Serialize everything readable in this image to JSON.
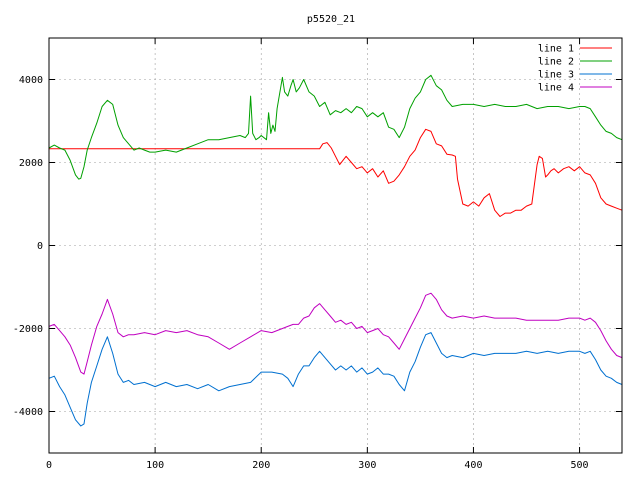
{
  "chart_data": {
    "type": "line",
    "title": "p5520_21",
    "xlabel": "",
    "ylabel": "",
    "xlim": [
      0,
      540
    ],
    "ylim": [
      -5000,
      5000
    ],
    "xticks": [
      0,
      100,
      200,
      300,
      400,
      500
    ],
    "yticks": [
      -4000,
      -2000,
      0,
      2000,
      4000
    ],
    "grid": true,
    "legend_position": "top-right",
    "series": [
      {
        "name": "line 1",
        "color": "#ff0000",
        "x": [
          0,
          50,
          100,
          150,
          200,
          255,
          258,
          262,
          266,
          270,
          274,
          280,
          285,
          290,
          295,
          300,
          305,
          310,
          315,
          320,
          325,
          330,
          335,
          340,
          345,
          350,
          355,
          360,
          365,
          370,
          375,
          380,
          383,
          385,
          390,
          395,
          400,
          405,
          410,
          415,
          420,
          425,
          430,
          435,
          440,
          445,
          450,
          455,
          460,
          462,
          465,
          468,
          470,
          473,
          476,
          480,
          485,
          490,
          495,
          500,
          505,
          510,
          515,
          520,
          525,
          530,
          535,
          540
        ],
        "y": [
          2330,
          2330,
          2330,
          2330,
          2330,
          2330,
          2450,
          2480,
          2350,
          2150,
          1950,
          2150,
          2000,
          1850,
          1900,
          1750,
          1850,
          1650,
          1800,
          1500,
          1550,
          1700,
          1900,
          2150,
          2300,
          2600,
          2800,
          2750,
          2450,
          2400,
          2200,
          2180,
          2150,
          1600,
          1000,
          950,
          1050,
          950,
          1150,
          1250,
          850,
          700,
          780,
          780,
          850,
          850,
          950,
          1000,
          1950,
          2150,
          2100,
          1650,
          1700,
          1800,
          1850,
          1750,
          1850,
          1900,
          1800,
          1900,
          1750,
          1700,
          1500,
          1150,
          1000,
          950,
          900,
          850
        ]
      },
      {
        "name": "line 2",
        "color": "#00a000",
        "x": [
          0,
          5,
          10,
          15,
          20,
          25,
          28,
          30,
          33,
          36,
          40,
          45,
          50,
          55,
          60,
          65,
          70,
          75,
          80,
          85,
          90,
          95,
          100,
          110,
          120,
          130,
          140,
          150,
          160,
          170,
          180,
          185,
          188,
          190,
          192,
          195,
          198,
          200,
          205,
          207,
          209,
          211,
          213,
          215,
          220,
          222,
          225,
          228,
          230,
          233,
          236,
          240,
          245,
          250,
          255,
          260,
          265,
          270,
          275,
          280,
          285,
          290,
          295,
          300,
          305,
          310,
          315,
          320,
          325,
          330,
          335,
          340,
          345,
          350,
          355,
          360,
          365,
          370,
          375,
          380,
          390,
          400,
          410,
          420,
          430,
          440,
          450,
          460,
          470,
          480,
          490,
          500,
          505,
          510,
          515,
          520,
          525,
          530,
          535,
          540
        ],
        "y": [
          2350,
          2420,
          2350,
          2300,
          2050,
          1700,
          1600,
          1620,
          1900,
          2300,
          2600,
          2950,
          3350,
          3500,
          3400,
          2900,
          2600,
          2450,
          2300,
          2350,
          2300,
          2250,
          2250,
          2300,
          2250,
          2350,
          2450,
          2550,
          2550,
          2600,
          2650,
          2600,
          2700,
          3600,
          2700,
          2550,
          2600,
          2650,
          2550,
          3200,
          2700,
          2900,
          2750,
          3300,
          4050,
          3700,
          3600,
          3850,
          4000,
          3700,
          3800,
          4000,
          3700,
          3600,
          3350,
          3450,
          3150,
          3250,
          3200,
          3300,
          3200,
          3350,
          3300,
          3100,
          3200,
          3100,
          3200,
          2850,
          2800,
          2600,
          2850,
          3300,
          3550,
          3700,
          4000,
          4100,
          3850,
          3750,
          3500,
          3350,
          3400,
          3400,
          3350,
          3400,
          3350,
          3350,
          3400,
          3300,
          3350,
          3350,
          3300,
          3350,
          3350,
          3300,
          3100,
          2900,
          2750,
          2700,
          2600,
          2550
        ]
      },
      {
        "name": "line 3",
        "color": "#0070d0",
        "x": [
          0,
          5,
          10,
          15,
          20,
          25,
          30,
          33,
          36,
          40,
          45,
          50,
          55,
          60,
          65,
          70,
          75,
          80,
          90,
          100,
          110,
          120,
          130,
          140,
          150,
          160,
          170,
          180,
          190,
          200,
          210,
          220,
          225,
          230,
          235,
          240,
          245,
          250,
          255,
          260,
          265,
          270,
          275,
          280,
          285,
          290,
          295,
          300,
          305,
          310,
          315,
          320,
          325,
          330,
          335,
          340,
          345,
          350,
          355,
          360,
          365,
          370,
          375,
          380,
          390,
          400,
          410,
          420,
          430,
          440,
          450,
          460,
          470,
          480,
          490,
          500,
          505,
          510,
          515,
          520,
          525,
          530,
          535,
          540
        ],
        "y": [
          -3200,
          -3150,
          -3400,
          -3600,
          -3900,
          -4200,
          -4350,
          -4300,
          -3800,
          -3300,
          -2900,
          -2500,
          -2200,
          -2600,
          -3100,
          -3300,
          -3250,
          -3350,
          -3300,
          -3400,
          -3300,
          -3400,
          -3350,
          -3450,
          -3350,
          -3500,
          -3400,
          -3350,
          -3300,
          -3050,
          -3050,
          -3100,
          -3200,
          -3400,
          -3100,
          -2900,
          -2900,
          -2700,
          -2550,
          -2700,
          -2850,
          -3000,
          -2900,
          -3000,
          -2900,
          -3050,
          -2950,
          -3100,
          -3050,
          -2950,
          -3100,
          -3100,
          -3150,
          -3350,
          -3500,
          -3050,
          -2800,
          -2450,
          -2150,
          -2100,
          -2350,
          -2600,
          -2700,
          -2650,
          -2700,
          -2600,
          -2650,
          -2600,
          -2600,
          -2600,
          -2550,
          -2600,
          -2550,
          -2600,
          -2550,
          -2550,
          -2600,
          -2550,
          -2750,
          -3000,
          -3150,
          -3200,
          -3300,
          -3350
        ]
      },
      {
        "name": "line 4",
        "color": "#c000c0",
        "x": [
          0,
          5,
          10,
          15,
          20,
          25,
          30,
          33,
          36,
          40,
          45,
          50,
          55,
          60,
          65,
          70,
          75,
          80,
          90,
          100,
          110,
          120,
          130,
          140,
          150,
          160,
          170,
          180,
          190,
          200,
          210,
          220,
          225,
          230,
          235,
          240,
          245,
          250,
          255,
          260,
          265,
          270,
          275,
          280,
          285,
          290,
          295,
          300,
          305,
          310,
          315,
          320,
          325,
          330,
          335,
          340,
          345,
          350,
          355,
          360,
          365,
          370,
          375,
          380,
          390,
          400,
          410,
          420,
          430,
          440,
          450,
          460,
          470,
          480,
          490,
          500,
          505,
          510,
          515,
          520,
          525,
          530,
          535,
          540
        ],
        "y": [
          -1950,
          -1900,
          -2050,
          -2200,
          -2400,
          -2700,
          -3050,
          -3100,
          -2800,
          -2400,
          -1950,
          -1650,
          -1300,
          -1650,
          -2100,
          -2200,
          -2150,
          -2150,
          -2100,
          -2150,
          -2050,
          -2100,
          -2050,
          -2150,
          -2200,
          -2350,
          -2500,
          -2350,
          -2200,
          -2050,
          -2100,
          -2000,
          -1950,
          -1900,
          -1900,
          -1750,
          -1700,
          -1500,
          -1400,
          -1550,
          -1700,
          -1850,
          -1800,
          -1900,
          -1850,
          -2000,
          -1950,
          -2100,
          -2050,
          -2000,
          -2150,
          -2200,
          -2350,
          -2500,
          -2250,
          -2000,
          -1750,
          -1500,
          -1200,
          -1150,
          -1300,
          -1550,
          -1700,
          -1750,
          -1700,
          -1750,
          -1700,
          -1750,
          -1750,
          -1750,
          -1800,
          -1800,
          -1800,
          -1800,
          -1750,
          -1750,
          -1800,
          -1750,
          -1850,
          -2050,
          -2300,
          -2500,
          -2650,
          -2700
        ]
      }
    ]
  }
}
